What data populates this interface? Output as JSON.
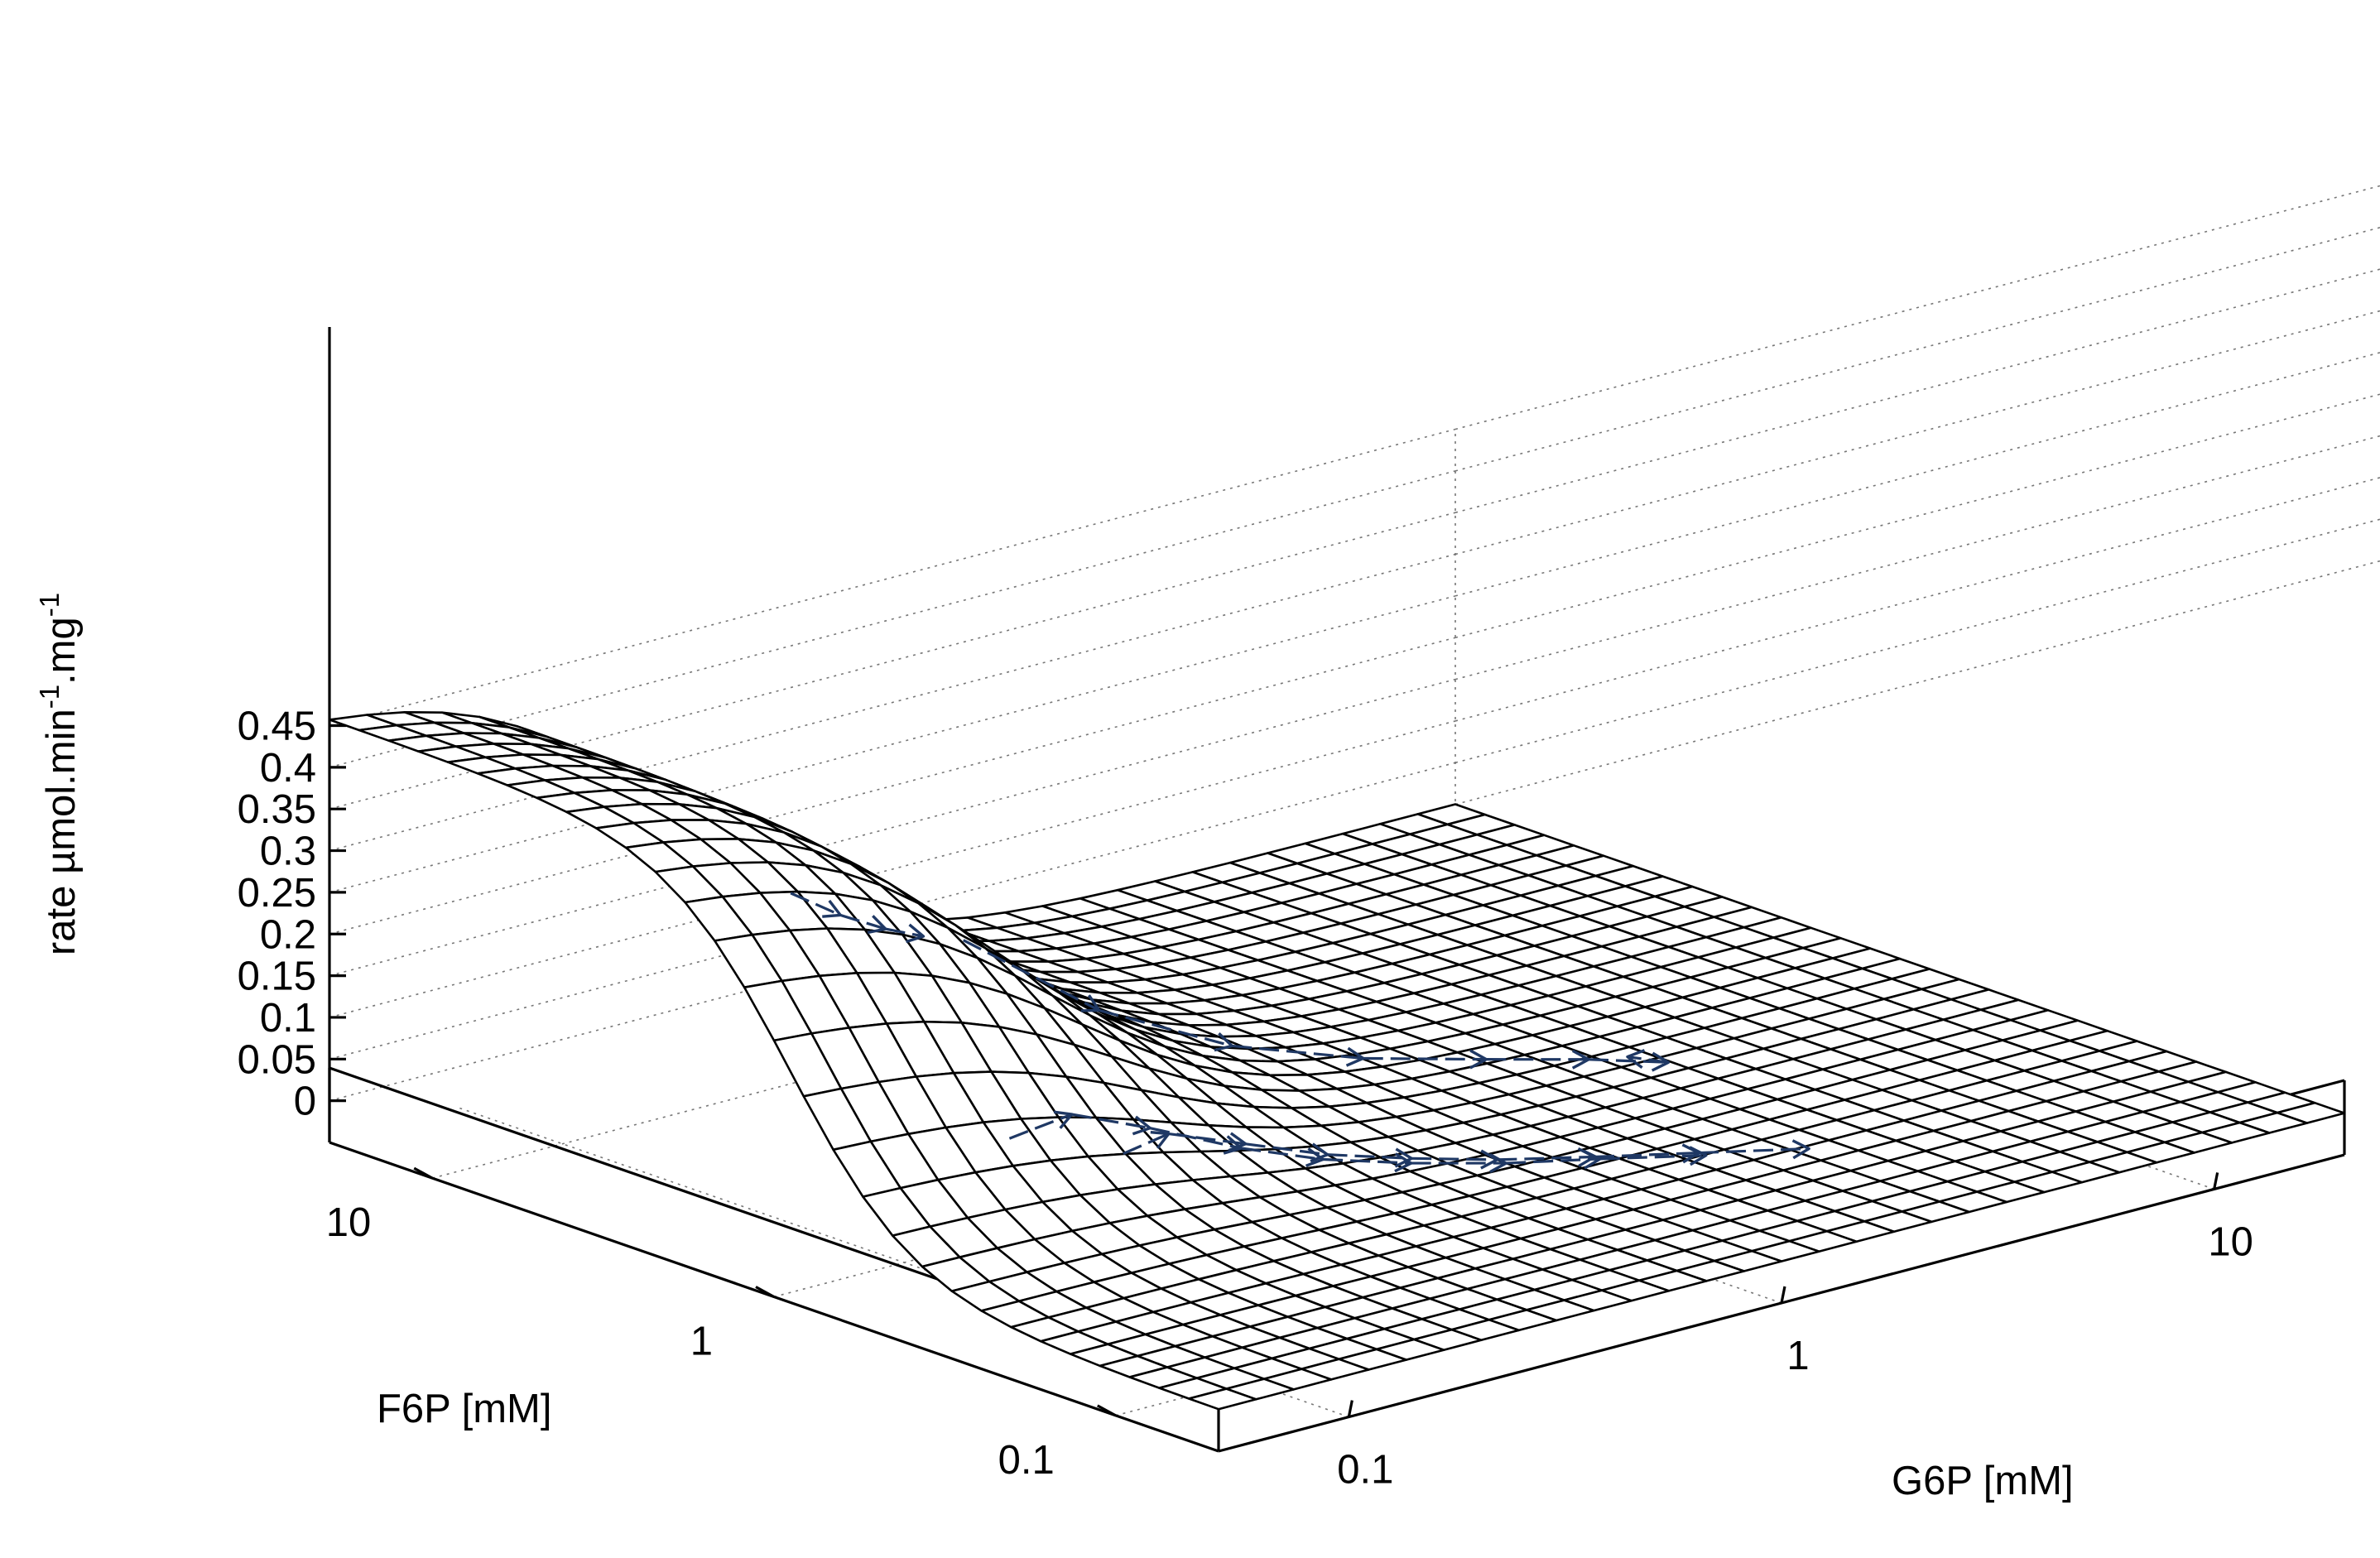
{
  "chart_data": {
    "type": "surface3d",
    "title": "",
    "zlabel": {
      "prefix": "rate ",
      "mu": "µ",
      "mid1": "mol.min",
      "exp1": "-1",
      "mid2": ".mg",
      "exp2": "-1"
    },
    "xlabel": "G6P [mM]",
    "ylabel": "F6P [mM]",
    "z_ticks": [
      "0",
      "0.05",
      "0.1",
      "0.15",
      "0.2",
      "0.25",
      "0.3",
      "0.35",
      "0.4",
      "0.45"
    ],
    "z_tick_values": [
      0,
      0.05,
      0.1,
      0.15,
      0.2,
      0.25,
      0.3,
      0.35,
      0.4,
      0.45
    ],
    "zlim": [
      -0.05,
      0.45
    ],
    "x_ticks": [
      "0.1",
      "1",
      "10"
    ],
    "x_tick_values": [
      0.1,
      1,
      10
    ],
    "y_ticks": [
      "0.1",
      "1",
      "10"
    ],
    "y_tick_values": [
      0.1,
      1,
      10
    ],
    "xlim": [
      0.05,
      20
    ],
    "ylim": [
      0.05,
      20
    ],
    "x_scale": "log",
    "y_scale": "log",
    "grid": true,
    "surface": {
      "description_free": true,
      "zmax": 0.47,
      "f6p_half_saturation": 0.9,
      "f6p_hill": 2.4,
      "g6p_half_saturation": 0.3,
      "g6p_hill": 2.0,
      "grid_lines": 30
    },
    "trajectories": [
      {
        "color": "#1f3864",
        "points": [
          [
            0.2,
            0.55
          ],
          [
            0.28,
            0.62
          ],
          [
            0.4,
            0.58
          ],
          [
            0.55,
            0.5
          ],
          [
            0.75,
            0.42
          ],
          [
            1.0,
            0.34
          ],
          [
            1.4,
            0.27
          ],
          [
            2.0,
            0.21
          ],
          [
            2.9,
            0.16
          ]
        ]
      },
      {
        "color": "#1f3864",
        "points": [
          [
            0.12,
            0.62
          ],
          [
            0.18,
            0.68
          ],
          [
            0.26,
            0.64
          ],
          [
            0.38,
            0.56
          ],
          [
            0.52,
            0.48
          ],
          [
            0.72,
            0.4
          ],
          [
            1.0,
            0.32
          ],
          [
            1.4,
            0.26
          ],
          [
            2.0,
            0.2
          ]
        ]
      },
      {
        "color": "#1f3864",
        "points": [
          [
            0.36,
            3.4
          ],
          [
            0.6,
            2.6
          ],
          [
            0.95,
            1.9
          ],
          [
            1.5,
            1.4
          ],
          [
            2.3,
            1.05
          ],
          [
            3.2,
            0.8
          ],
          [
            4.0,
            0.62
          ],
          [
            3.7,
            0.74
          ]
        ]
      },
      {
        "color": "#1f3864",
        "points": [
          [
            0.5,
            16.5
          ],
          [
            0.62,
            15.5
          ],
          [
            0.76,
            14.8
          ],
          [
            0.9,
            14.2
          ]
        ]
      }
    ],
    "trajectory_color": "#1f3864"
  }
}
